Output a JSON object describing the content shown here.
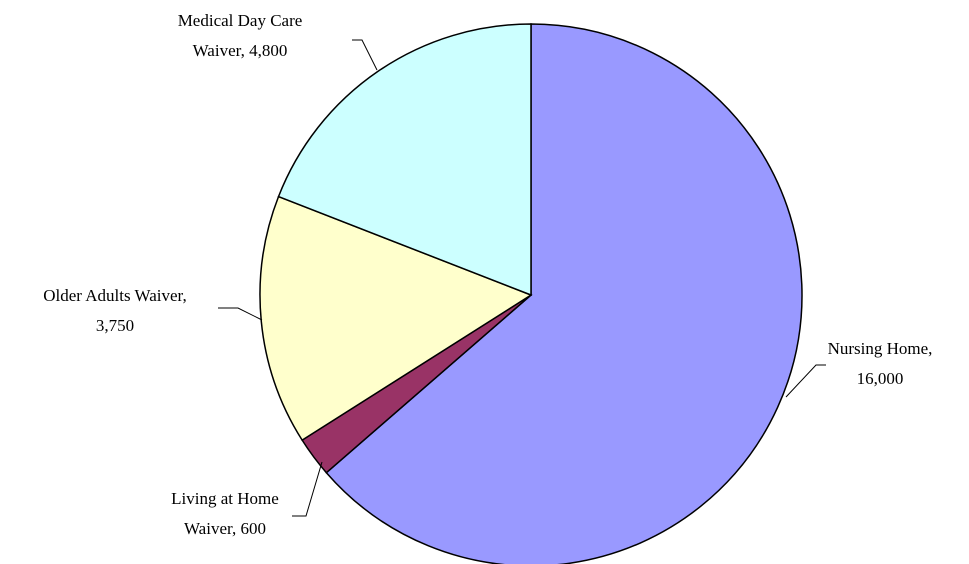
{
  "chart_data": {
    "type": "pie",
    "values": [
      16000,
      600,
      3750,
      4800
    ],
    "value_labels": [
      [
        "Nursing Home,",
        "16,000"
      ],
      [
        "Living at Home",
        "Waiver, 600"
      ],
      [
        "Older Adults Waiver,",
        "3,750"
      ],
      [
        "Medical Day Care",
        "Waiver, 4,800"
      ]
    ],
    "colors": [
      "#9999ff",
      "#993366",
      "#ffffcc",
      "#ccffff"
    ],
    "start_angle": 0,
    "direction": "clockwise"
  }
}
